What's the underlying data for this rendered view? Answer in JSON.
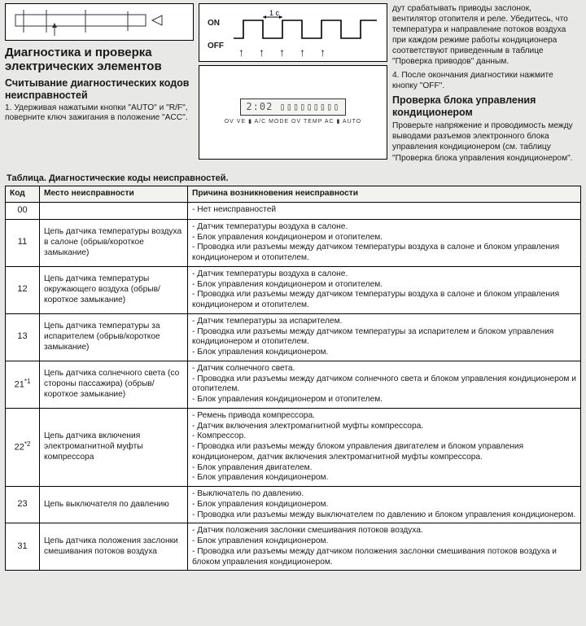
{
  "top": {
    "waveform": {
      "on_label": "ON",
      "off_label": "OFF",
      "pulse_label": "1 c"
    },
    "right_text": {
      "p1": "дут срабатывать приводы заслонок, вентилятор отопителя и реле. Убедитесь, что температура и направление потоков воздуха при каждом режиме работы кондиционера соответствуют приведенным в таблице \"Проверка приводов\" данным.",
      "p2": "4. После окончания диагностики нажмите кнопку \"OFF\"."
    },
    "panel": {
      "lcd": "2:02  ▯▯▯▯▯▯▯▯▯",
      "btns": "OV  VE  ▮  A/C  MODE  OV TEMP AC  ▮  AUTO"
    }
  },
  "left_col": {
    "h1": "Диагностика и проверка электрических элементов",
    "h2": "Считывание диагностических кодов неисправностей",
    "p1": "1. Удерживая нажатыми кнопки \"AUTO\" и \"R/F\", поверните ключ зажигания в положение \"ACC\"."
  },
  "right_col": {
    "h2": "Проверка блока управления кондиционером",
    "p1": "Проверьте напряжение и проводимость между выводами разъемов электронного блока управления кондиционером (см. таблицу \"Проверка блока управления кондиционером\"."
  },
  "table": {
    "caption": "Таблица. Диагностические коды неисправностей.",
    "columns": [
      "Код",
      "Место неисправности",
      "Причина возникновения неисправности"
    ],
    "rows": [
      {
        "code": "00",
        "loc": "",
        "cause": [
          "Нет неисправностей"
        ]
      },
      {
        "code": "11",
        "loc": "Цепь датчика температуры воздуха в салоне (обрыв/короткое замыкание)",
        "cause": [
          "Датчик температуры воздуха в салоне.",
          "Блок управления кондиционером и отопителем.",
          "Проводка или разъемы между датчиком температуры воздуха в салоне и блоком управления кондиционером и отопителем."
        ]
      },
      {
        "code": "12",
        "loc": "Цепь датчика температуры окружающего воздуха (обрыв/короткое замыкание)",
        "cause": [
          "Датчик температуры воздуха в салоне.",
          "Блок управления кондиционером и отопителем.",
          "Проводка или разъемы между датчиком температуры воздуха в салоне и блоком управления кондиционером и отопителем."
        ]
      },
      {
        "code": "13",
        "loc": "Цепь датчика температуры за испарителем (обрыв/короткое замыкание)",
        "cause": [
          "Датчик температуры за испарителем.",
          "Проводка или разъемы между датчиком температуры за испарителем и блоком управления кондиционером и отопителем.",
          "Блок управления кондиционером."
        ]
      },
      {
        "code": "21*1",
        "loc": "Цепь датчика солнечного света (со стороны пассажира) (обрыв/короткое замыкание)",
        "cause": [
          "Датчик солнечного света.",
          "Проводка или разъемы между датчиком солнечного света и блоком управления кондиционером и отопителем.",
          "Блок управления кондиционером и отопителем."
        ]
      },
      {
        "code": "22*2",
        "loc": "Цепь датчика включения электромагнитной муфты компрессора",
        "cause": [
          "Ремень привода компрессора.",
          "Датчик включения электромагнитной муфты компрессора.",
          "Компрессор.",
          "Проводка или разъемы между блоком управления двигателем и блоком управления кондиционером, датчик включения электромагнитной муфты компрессора.",
          "Блок управления двигателем.",
          "Блок управления кондиционером."
        ]
      },
      {
        "code": "23",
        "loc": "Цепь выключателя по давлению",
        "cause": [
          "Выключатель по давлению.",
          "Блок управления кондиционером.",
          "Проводка или разъемы между выключателем по давлению и блоком управления кондиционером."
        ]
      },
      {
        "code": "31",
        "loc": "Цепь датчика положения заслонки смешивания потоков воздуха",
        "cause": [
          "Датчик положения заслонки смешивания потоков воздуха.",
          "Блок управления кондиционером.",
          "Проводка или разъемы между датчиком положения заслонки смешивания потоков воздуха и блоком управления кондиционером."
        ]
      }
    ]
  }
}
